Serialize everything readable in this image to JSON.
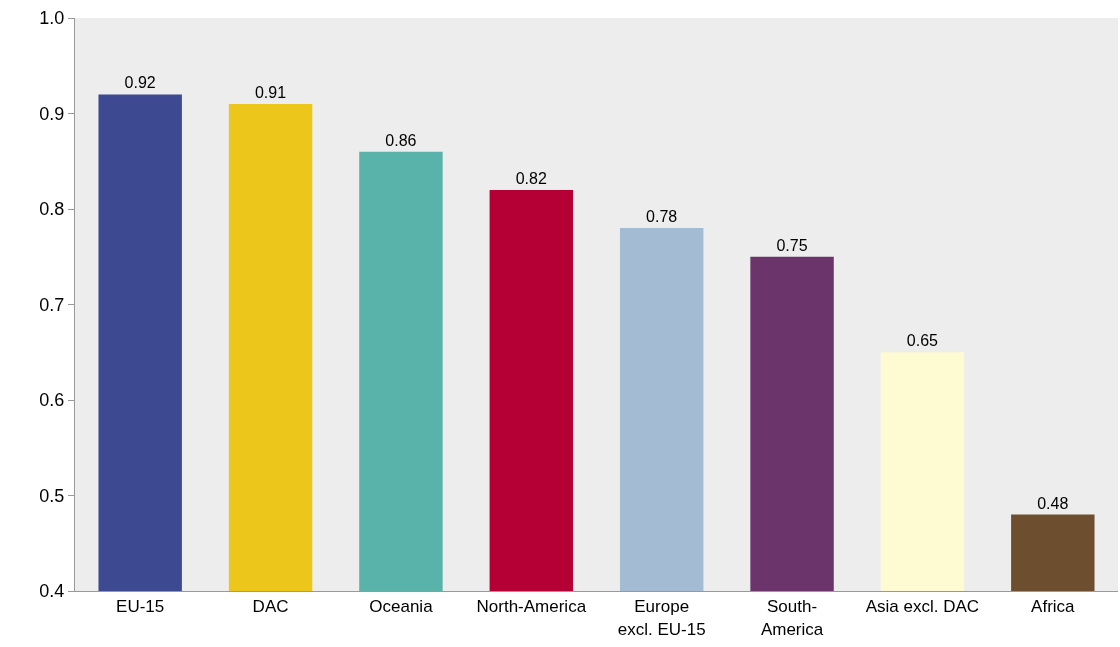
{
  "chart_data": {
    "type": "bar",
    "categories": [
      "EU-15",
      "DAC",
      "Oceania",
      "North-America",
      "Europe\nexcl. EU-15",
      "South-\nAmerica",
      "Asia excl. DAC",
      "Africa"
    ],
    "values": [
      0.92,
      0.91,
      0.86,
      0.82,
      0.78,
      0.75,
      0.65,
      0.48
    ],
    "colors": [
      "#3d4a91",
      "#edc61b",
      "#59b3ab",
      "#b50035",
      "#a3bbd3",
      "#6b356b",
      "#fefad1",
      "#6d4f2f"
    ],
    "ylim": [
      0.4,
      1.0
    ],
    "yticks": [
      0.4,
      0.5,
      0.6,
      0.7,
      0.8,
      0.9,
      {
        "value": 1.0,
        "label": "1.0"
      }
    ],
    "data_labels": true,
    "grid": false
  }
}
